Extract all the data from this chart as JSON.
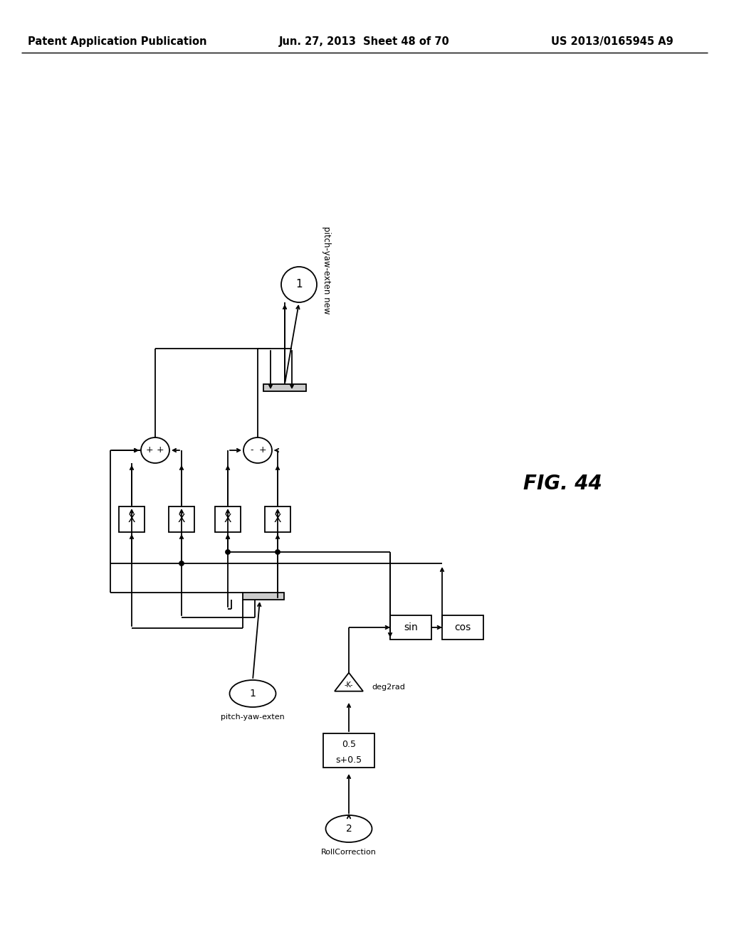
{
  "title_left": "Patent Application Publication",
  "title_center": "Jun. 27, 2013  Sheet 48 of 70",
  "title_right": "US 2013/0165945 A9",
  "fig_label": "FIG. 44",
  "bg_color": "#ffffff",
  "line_color": "#000000",
  "text_color": "#000000",
  "header_fontsize": 10.5,
  "fig_label_fontsize": 20
}
